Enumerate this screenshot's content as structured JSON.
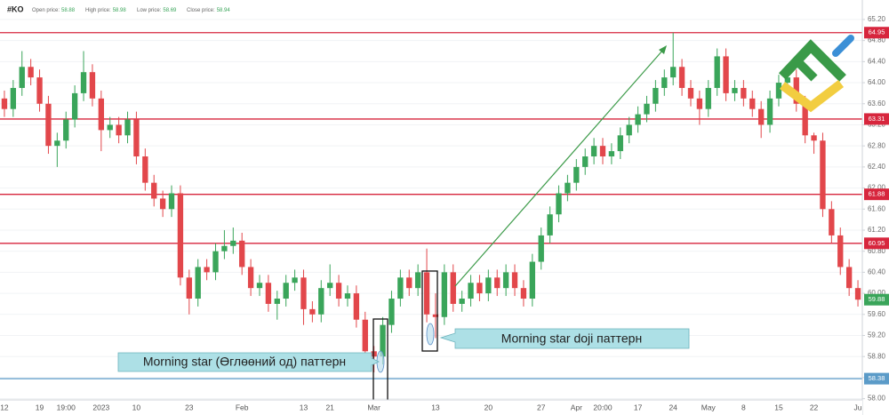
{
  "chart_data": {
    "type": "candlestick",
    "symbol": "#KO",
    "ohlc_info": [
      {
        "label": "Open price:",
        "value": 58.88
      },
      {
        "label": "High price:",
        "value": 58.98
      },
      {
        "label": "Low price:",
        "value": 58.69
      },
      {
        "label": "Close price:",
        "value": 58.94
      }
    ],
    "up_color": "#3aa55a",
    "down_color": "#e2474b",
    "grid": true,
    "ylim": [
      57.69,
      65.57
    ],
    "yticks": [
      {
        "value": 58.0,
        "label": "58.00"
      },
      {
        "value": 58.4,
        "label": "58.40"
      },
      {
        "value": 58.8,
        "label": "58.80"
      },
      {
        "value": 59.2,
        "label": "59.20"
      },
      {
        "value": 59.6,
        "label": "59.60"
      },
      {
        "value": 60.0,
        "label": "60.00"
      },
      {
        "value": 60.4,
        "label": "60.40"
      },
      {
        "value": 60.8,
        "label": "60.80"
      },
      {
        "value": 61.2,
        "label": "61.20"
      },
      {
        "value": 61.6,
        "label": "61.60"
      },
      {
        "value": 62.0,
        "label": "62.00"
      },
      {
        "value": 62.4,
        "label": "62.40"
      },
      {
        "value": 62.8,
        "label": "62.80"
      },
      {
        "value": 63.2,
        "label": "63.20"
      },
      {
        "value": 63.6,
        "label": "63.60"
      },
      {
        "value": 64.0,
        "label": "64.00"
      },
      {
        "value": 64.4,
        "label": "64.40"
      },
      {
        "value": 64.8,
        "label": "64.80"
      },
      {
        "value": 65.2,
        "label": "65.20"
      }
    ],
    "levels": [
      {
        "value": 64.95,
        "color": "#d7263d"
      },
      {
        "value": 63.31,
        "color": "#d7263d"
      },
      {
        "value": 61.88,
        "color": "#d7263d"
      },
      {
        "value": 60.95,
        "color": "#d7263d"
      },
      {
        "value": 58.38,
        "color": "#5b9bc8"
      }
    ],
    "last_price": {
      "value": 59.88,
      "color": "#3aa55a"
    },
    "annotations": [
      "Morning star (Өглөөний од) паттерн",
      "Morning star doji паттерн"
    ],
    "categories": [
      "12",
      null,
      null,
      null,
      "19",
      null,
      null,
      "19:00",
      null,
      null,
      null,
      "2023",
      null,
      null,
      null,
      "10",
      null,
      null,
      null,
      null,
      null,
      "23",
      null,
      null,
      null,
      null,
      null,
      "Feb",
      null,
      null,
      null,
      null,
      null,
      null,
      "13",
      null,
      null,
      "21",
      null,
      null,
      null,
      null,
      "Mar",
      null,
      null,
      null,
      null,
      null,
      null,
      "13",
      null,
      null,
      null,
      null,
      null,
      "20",
      null,
      null,
      null,
      null,
      null,
      "27",
      null,
      null,
      null,
      "Apr",
      null,
      null,
      "20:00",
      null,
      null,
      null,
      "17",
      null,
      null,
      null,
      "24",
      null,
      null,
      null,
      "May",
      null,
      null,
      null,
      "8",
      null,
      null,
      null,
      "15",
      null,
      null,
      null,
      "22",
      null,
      null,
      null,
      null,
      "Ju"
    ],
    "open": [
      63.7,
      63.5,
      63.9,
      64.3,
      64.1,
      63.6,
      62.8,
      62.9,
      63.3,
      63.8,
      64.2,
      63.7,
      63.1,
      63.2,
      63.0,
      63.3,
      62.6,
      62.1,
      61.8,
      61.6,
      61.9,
      60.3,
      59.9,
      60.5,
      60.4,
      60.8,
      60.9,
      61.0,
      60.5,
      60.1,
      60.2,
      59.8,
      59.9,
      60.2,
      60.3,
      59.7,
      59.6,
      60.1,
      60.2,
      59.9,
      60.0,
      59.5,
      58.9,
      58.8,
      59.4,
      59.9,
      60.3,
      60.1,
      60.4,
      59.6,
      59.55,
      60.4,
      59.8,
      59.9,
      60.2,
      60.0,
      60.3,
      60.1,
      60.4,
      60.1,
      59.9,
      60.6,
      61.1,
      61.5,
      61.9,
      62.1,
      62.4,
      62.6,
      62.8,
      62.6,
      62.7,
      63.0,
      63.2,
      63.4,
      63.6,
      63.9,
      64.1,
      64.3,
      63.9,
      63.7,
      63.5,
      63.9,
      64.5,
      63.8,
      63.9,
      63.7,
      63.5,
      63.2,
      63.7,
      64.0,
      64.1,
      63.6,
      63.0,
      62.9,
      61.6,
      61.1,
      60.5,
      60.1
    ],
    "high": [
      63.85,
      64.05,
      64.6,
      64.45,
      64.25,
      63.75,
      63.05,
      63.45,
      63.95,
      64.6,
      64.35,
      63.85,
      63.35,
      63.35,
      63.45,
      63.45,
      62.75,
      62.25,
      61.95,
      62.05,
      62.05,
      60.45,
      60.65,
      60.65,
      60.95,
      61.2,
      61.25,
      61.15,
      60.65,
      60.35,
      60.35,
      60.05,
      60.35,
      60.45,
      60.45,
      59.85,
      60.25,
      60.55,
      60.35,
      60.15,
      60.15,
      59.65,
      59.0,
      59.55,
      60.05,
      60.45,
      60.45,
      60.55,
      60.85,
      60.0,
      60.55,
      60.55,
      60.05,
      60.35,
      60.35,
      60.45,
      60.45,
      60.55,
      60.55,
      60.25,
      60.75,
      61.25,
      61.65,
      62.05,
      62.25,
      62.55,
      62.75,
      62.95,
      62.95,
      62.85,
      63.15,
      63.35,
      63.55,
      63.75,
      64.05,
      64.25,
      64.95,
      64.45,
      64.05,
      63.85,
      64.05,
      64.65,
      64.65,
      64.05,
      64.05,
      63.85,
      63.65,
      63.85,
      64.15,
      64.25,
      64.25,
      63.75,
      63.05,
      63.05,
      61.75,
      61.25,
      60.65,
      60.25
    ],
    "low": [
      63.35,
      63.35,
      63.75,
      63.95,
      63.45,
      62.65,
      62.4,
      62.75,
      63.15,
      63.65,
      63.55,
      62.7,
      62.95,
      62.85,
      62.85,
      62.45,
      61.95,
      61.65,
      61.45,
      61.45,
      60.15,
      59.6,
      59.75,
      60.25,
      60.25,
      60.65,
      60.75,
      60.35,
      59.95,
      59.95,
      59.65,
      59.5,
      59.75,
      60.05,
      59.4,
      59.45,
      59.45,
      59.95,
      59.75,
      59.75,
      59.35,
      58.75,
      58.5,
      58.65,
      59.25,
      59.75,
      59.95,
      59.95,
      59.45,
      59.15,
      59.4,
      59.65,
      59.65,
      59.75,
      59.85,
      59.85,
      59.95,
      59.95,
      59.95,
      59.75,
      59.75,
      60.45,
      60.95,
      61.35,
      61.75,
      61.95,
      62.25,
      62.45,
      62.45,
      62.45,
      62.55,
      62.85,
      63.05,
      63.25,
      63.45,
      63.75,
      63.95,
      63.75,
      63.55,
      63.2,
      63.35,
      63.75,
      63.65,
      63.65,
      63.55,
      63.35,
      62.95,
      63.05,
      63.55,
      63.85,
      63.45,
      62.85,
      62.65,
      61.45,
      60.95,
      60.35,
      59.95,
      59.75
    ],
    "close": [
      63.5,
      63.9,
      64.3,
      64.1,
      63.6,
      62.8,
      62.9,
      63.3,
      63.8,
      64.2,
      63.7,
      63.1,
      63.2,
      63.0,
      63.3,
      62.6,
      62.1,
      61.8,
      61.6,
      61.9,
      60.3,
      59.9,
      60.5,
      60.4,
      60.8,
      60.9,
      61.0,
      60.5,
      60.1,
      60.2,
      59.8,
      59.9,
      60.2,
      60.3,
      59.7,
      59.6,
      60.1,
      60.2,
      59.9,
      60.0,
      59.5,
      58.9,
      58.8,
      59.4,
      59.9,
      60.3,
      60.1,
      60.4,
      59.6,
      59.55,
      60.4,
      59.8,
      59.9,
      60.2,
      60.0,
      60.3,
      60.1,
      60.4,
      60.1,
      59.9,
      60.6,
      61.1,
      61.5,
      61.9,
      62.1,
      62.4,
      62.6,
      62.8,
      62.6,
      62.7,
      63.0,
      63.2,
      63.4,
      63.6,
      63.9,
      64.1,
      64.3,
      63.9,
      63.7,
      63.5,
      63.9,
      64.5,
      63.8,
      63.9,
      63.7,
      63.5,
      63.2,
      63.7,
      64.0,
      64.1,
      63.6,
      63.0,
      62.9,
      61.6,
      61.1,
      60.5,
      60.1,
      59.88
    ]
  }
}
